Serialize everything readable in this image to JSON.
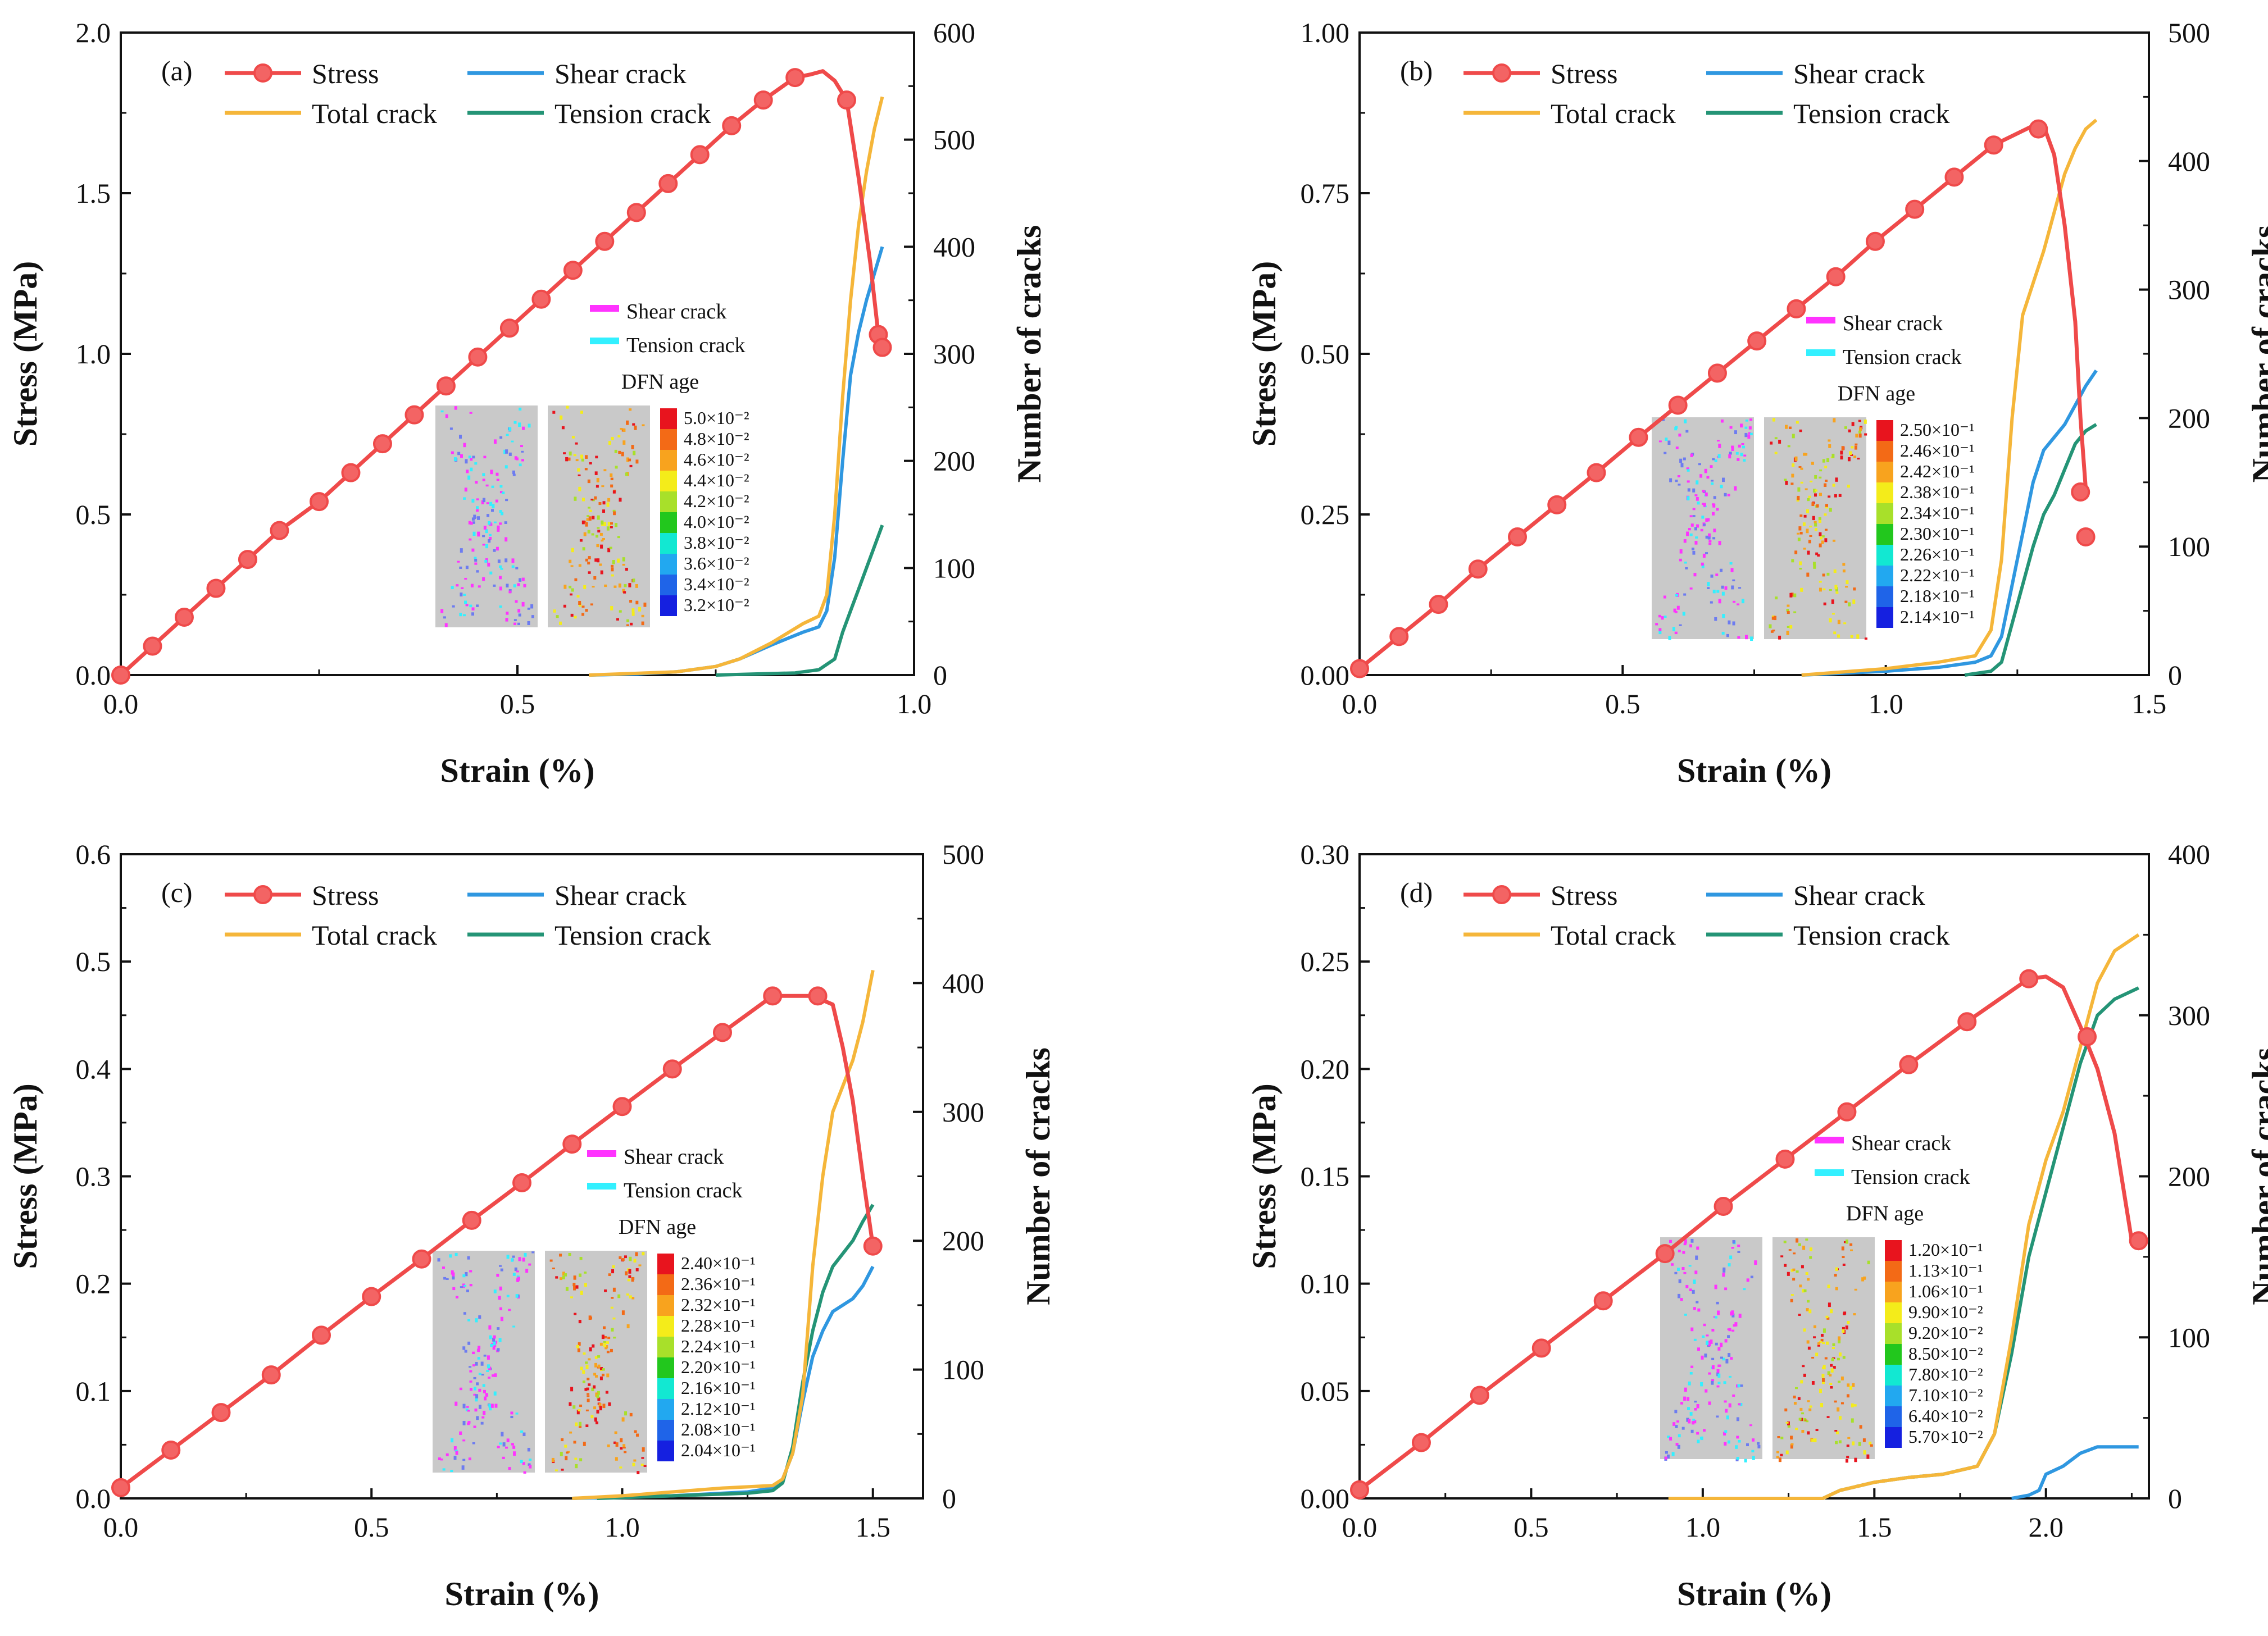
{
  "colors": {
    "stress": "#ef4a4a",
    "stress_marker": "#f36464",
    "shear": "#2f97e0",
    "total": "#f5b63a",
    "tension": "#249476",
    "inset_shear": "#ff33ff",
    "inset_tension": "#33f0ff",
    "specimen": "#c9c9c9"
  },
  "inset": {
    "shear_label": "Shear crack",
    "tension_label": "Tension crack",
    "dfn_title": "DFN age"
  },
  "colorbar_palette": [
    "#e8141e",
    "#f36a16",
    "#f8a31e",
    "#f4ec1a",
    "#a8e02a",
    "#22c71d",
    "#12e8d2",
    "#22a8f0",
    "#1f64e8",
    "#1520e0"
  ],
  "chart_data": [
    {
      "type": "line",
      "panel": "(a)",
      "xlabel": "Strain (%)",
      "ylabel": "Stress (MPa)",
      "y2label": "Number of  cracks",
      "xlim": [
        0,
        1.0
      ],
      "ylim": [
        0,
        2.0
      ],
      "y2lim": [
        0,
        600
      ],
      "xticks": [
        "0.0",
        "0.5",
        "1.0"
      ],
      "yticks": [
        "0.0",
        "0.5",
        "1.0",
        "1.5",
        "2.0"
      ],
      "y2ticks": [
        "0",
        "100",
        "200",
        "300",
        "400",
        "500",
        "600"
      ],
      "legend": [
        "Stress",
        "Shear crack",
        "Total crack",
        "Tension crack"
      ],
      "colorbar_labels": [
        "5.0×10⁻²",
        "4.8×10⁻²",
        "4.6×10⁻²",
        "4.4×10⁻²",
        "4.2×10⁻²",
        "4.0×10⁻²",
        "3.8×10⁻²",
        "3.6×10⁻²",
        "3.4×10⁻²",
        "3.2×10⁻²"
      ],
      "series": [
        {
          "name": "Stress",
          "axis": "left",
          "x": [
            0,
            0.04,
            0.08,
            0.12,
            0.16,
            0.2,
            0.25,
            0.29,
            0.33,
            0.37,
            0.41,
            0.45,
            0.49,
            0.53,
            0.57,
            0.61,
            0.65,
            0.69,
            0.73,
            0.77,
            0.81,
            0.85,
            0.87,
            0.885,
            0.9,
            0.915,
            0.93,
            0.945,
            0.955,
            0.96
          ],
          "y": [
            0.0,
            0.09,
            0.18,
            0.27,
            0.36,
            0.45,
            0.54,
            0.63,
            0.72,
            0.81,
            0.9,
            0.99,
            1.08,
            1.17,
            1.26,
            1.35,
            1.44,
            1.53,
            1.62,
            1.71,
            1.79,
            1.86,
            1.87,
            1.88,
            1.85,
            1.79,
            1.55,
            1.28,
            1.06,
            1.02
          ],
          "markers": [
            0,
            0.09,
            0.18,
            0.27,
            0.36,
            0.45,
            0.54,
            0.63,
            0.72,
            0.81,
            0.9,
            0.99,
            1.08,
            1.17,
            1.26,
            1.35,
            1.44,
            1.53,
            1.62,
            1.71,
            1.79,
            1.86,
            1.79,
            1.06,
            1.02
          ],
          "marker_x": [
            0,
            0.04,
            0.08,
            0.12,
            0.16,
            0.2,
            0.25,
            0.29,
            0.33,
            0.37,
            0.41,
            0.45,
            0.49,
            0.53,
            0.57,
            0.61,
            0.65,
            0.69,
            0.73,
            0.77,
            0.81,
            0.85,
            0.915,
            0.955,
            0.96
          ]
        },
        {
          "name": "Shear crack",
          "axis": "right",
          "x": [
            0.59,
            0.65,
            0.7,
            0.75,
            0.78,
            0.82,
            0.86,
            0.88,
            0.89,
            0.9,
            0.91,
            0.92,
            0.93,
            0.94,
            0.95,
            0.96
          ],
          "y": [
            0,
            1,
            3,
            8,
            15,
            28,
            40,
            45,
            60,
            110,
            200,
            280,
            320,
            350,
            375,
            400
          ]
        },
        {
          "name": "Total crack",
          "axis": "right",
          "x": [
            0.59,
            0.7,
            0.75,
            0.78,
            0.82,
            0.86,
            0.88,
            0.89,
            0.9,
            0.91,
            0.92,
            0.93,
            0.94,
            0.95,
            0.96
          ],
          "y": [
            0,
            3,
            8,
            15,
            30,
            48,
            55,
            75,
            150,
            260,
            350,
            420,
            470,
            510,
            540
          ]
        },
        {
          "name": "Tension crack",
          "axis": "right",
          "x": [
            0.75,
            0.85,
            0.88,
            0.9,
            0.91,
            0.92,
            0.93,
            0.94,
            0.95,
            0.96
          ],
          "y": [
            0,
            2,
            5,
            15,
            40,
            60,
            80,
            100,
            120,
            140
          ]
        }
      ]
    },
    {
      "type": "line",
      "panel": "(b)",
      "xlabel": "Strain (%)",
      "ylabel": "Stress (MPa)",
      "y2label": "Number of cracks",
      "xlim": [
        0,
        1.5
      ],
      "ylim": [
        0,
        1.0
      ],
      "y2lim": [
        0,
        500
      ],
      "xticks": [
        "0.0",
        "0.5",
        "1.0",
        "1.5"
      ],
      "yticks": [
        "0.00",
        "0.25",
        "0.50",
        "0.75",
        "1.00"
      ],
      "y2ticks": [
        "0",
        "100",
        "200",
        "300",
        "400",
        "500"
      ],
      "legend": [
        "Stress",
        "Shear crack",
        "Total crack",
        "Tension crack"
      ],
      "colorbar_labels": [
        "2.50×10⁻¹",
        "2.46×10⁻¹",
        "2.42×10⁻¹",
        "2.38×10⁻¹",
        "2.34×10⁻¹",
        "2.30×10⁻¹",
        "2.26×10⁻¹",
        "2.22×10⁻¹",
        "2.18×10⁻¹",
        "2.14×10⁻¹"
      ],
      "series": [
        {
          "name": "Stress",
          "axis": "left",
          "x": [
            0,
            0.075,
            0.15,
            0.225,
            0.3,
            0.375,
            0.45,
            0.53,
            0.605,
            0.68,
            0.755,
            0.83,
            0.905,
            0.98,
            1.055,
            1.13,
            1.205,
            1.28,
            1.3,
            1.32,
            1.34,
            1.36,
            1.37,
            1.38
          ],
          "y": [
            0.01,
            0.06,
            0.11,
            0.165,
            0.215,
            0.265,
            0.315,
            0.37,
            0.42,
            0.47,
            0.52,
            0.57,
            0.62,
            0.675,
            0.725,
            0.775,
            0.825,
            0.855,
            0.855,
            0.81,
            0.7,
            0.55,
            0.4,
            0.29
          ],
          "marker_x": [
            0,
            0.075,
            0.15,
            0.225,
            0.3,
            0.375,
            0.45,
            0.53,
            0.605,
            0.68,
            0.755,
            0.83,
            0.905,
            0.98,
            1.055,
            1.13,
            1.205,
            1.29,
            1.37,
            1.38
          ],
          "markers": [
            0.01,
            0.06,
            0.11,
            0.165,
            0.215,
            0.265,
            0.315,
            0.37,
            0.42,
            0.47,
            0.52,
            0.57,
            0.62,
            0.675,
            0.725,
            0.775,
            0.825,
            0.85,
            0.285,
            0.215
          ]
        },
        {
          "name": "Shear crack",
          "axis": "right",
          "x": [
            0.84,
            1.0,
            1.1,
            1.17,
            1.2,
            1.22,
            1.24,
            1.26,
            1.28,
            1.3,
            1.32,
            1.34,
            1.36,
            1.38,
            1.4
          ],
          "y": [
            0,
            3,
            6,
            10,
            15,
            30,
            70,
            110,
            150,
            175,
            185,
            195,
            210,
            225,
            237
          ]
        },
        {
          "name": "Total crack",
          "axis": "right",
          "x": [
            0.84,
            1.0,
            1.1,
            1.17,
            1.2,
            1.22,
            1.24,
            1.26,
            1.28,
            1.3,
            1.32,
            1.34,
            1.36,
            1.38,
            1.4
          ],
          "y": [
            0,
            5,
            10,
            15,
            35,
            90,
            200,
            280,
            305,
            330,
            360,
            390,
            410,
            425,
            432
          ]
        },
        {
          "name": "Tension crack",
          "axis": "right",
          "x": [
            1.15,
            1.2,
            1.22,
            1.24,
            1.26,
            1.28,
            1.3,
            1.32,
            1.34,
            1.36,
            1.38,
            1.4
          ],
          "y": [
            0,
            3,
            10,
            40,
            70,
            100,
            125,
            140,
            160,
            180,
            190,
            195
          ]
        }
      ]
    },
    {
      "type": "line",
      "panel": "(c)",
      "xlabel": "Strain (%)",
      "ylabel": "Stress (MPa)",
      "y2label": "Number of cracks",
      "xlim": [
        0,
        1.6
      ],
      "ylim": [
        0,
        0.6
      ],
      "y2lim": [
        0,
        500
      ],
      "xticks": [
        "0.0",
        "0.5",
        "1.0",
        "1.5"
      ],
      "yticks": [
        "0.0",
        "0.1",
        "0.2",
        "0.3",
        "0.4",
        "0.5",
        "0.6"
      ],
      "y2ticks": [
        "0",
        "100",
        "200",
        "300",
        "400",
        "500"
      ],
      "legend": [
        "Stress",
        "Shear crack",
        "Total crack",
        "Tension crack"
      ],
      "colorbar_labels": [
        "2.40×10⁻¹",
        "2.36×10⁻¹",
        "2.32×10⁻¹",
        "2.28×10⁻¹",
        "2.24×10⁻¹",
        "2.20×10⁻¹",
        "2.16×10⁻¹",
        "2.12×10⁻¹",
        "2.08×10⁻¹",
        "2.04×10⁻¹"
      ],
      "series": [
        {
          "name": "Stress",
          "axis": "left",
          "x": [
            0,
            0.1,
            0.2,
            0.3,
            0.4,
            0.5,
            0.6,
            0.7,
            0.8,
            0.9,
            1.0,
            1.1,
            1.2,
            1.3,
            1.38,
            1.42,
            1.44,
            1.46,
            1.48,
            1.5
          ],
          "y": [
            0.01,
            0.045,
            0.08,
            0.115,
            0.152,
            0.188,
            0.223,
            0.259,
            0.294,
            0.33,
            0.365,
            0.4,
            0.434,
            0.468,
            0.468,
            0.46,
            0.42,
            0.37,
            0.3,
            0.235
          ],
          "marker_x": [
            0,
            0.1,
            0.2,
            0.3,
            0.4,
            0.5,
            0.6,
            0.7,
            0.8,
            0.9,
            1.0,
            1.1,
            1.2,
            1.3,
            1.39,
            1.5
          ],
          "markers": [
            0.01,
            0.045,
            0.08,
            0.115,
            0.152,
            0.188,
            0.223,
            0.259,
            0.294,
            0.33,
            0.365,
            0.4,
            0.434,
            0.468,
            0.468,
            0.235
          ]
        },
        {
          "name": "Shear crack",
          "axis": "right",
          "x": [
            0.9,
            1.1,
            1.25,
            1.3,
            1.32,
            1.34,
            1.36,
            1.38,
            1.4,
            1.42,
            1.44,
            1.46,
            1.48,
            1.5
          ],
          "y": [
            0,
            2,
            5,
            8,
            15,
            35,
            75,
            110,
            130,
            145,
            150,
            155,
            165,
            180
          ]
        },
        {
          "name": "Total crack",
          "axis": "right",
          "x": [
            0.9,
            1.0,
            1.1,
            1.2,
            1.3,
            1.32,
            1.34,
            1.36,
            1.38,
            1.4,
            1.42,
            1.44,
            1.46,
            1.48,
            1.5
          ],
          "y": [
            0,
            2,
            5,
            8,
            10,
            15,
            35,
            80,
            180,
            250,
            300,
            320,
            340,
            370,
            410
          ]
        },
        {
          "name": "Tension crack",
          "axis": "right",
          "x": [
            0.95,
            1.1,
            1.25,
            1.3,
            1.32,
            1.34,
            1.36,
            1.38,
            1.4,
            1.42,
            1.44,
            1.46,
            1.48,
            1.5
          ],
          "y": [
            0,
            2,
            4,
            6,
            12,
            40,
            90,
            130,
            160,
            180,
            190,
            200,
            215,
            228
          ]
        }
      ]
    },
    {
      "type": "line",
      "panel": "(d)",
      "xlabel": "Strain (%)",
      "ylabel": "Stress (MPa)",
      "y2label": "Number of cracks",
      "xlim": [
        0,
        2.3
      ],
      "ylim": [
        0,
        0.3
      ],
      "y2lim": [
        0,
        400
      ],
      "xticks": [
        "0.0",
        "0.5",
        "1.0",
        "1.5",
        "2.0"
      ],
      "yticks": [
        "0.00",
        "0.05",
        "0.10",
        "0.15",
        "0.20",
        "0.25",
        "0.30"
      ],
      "y2ticks": [
        "0",
        "100",
        "200",
        "300",
        "400"
      ],
      "legend": [
        "Stress",
        "Shear crack",
        "Total crack",
        "Tension crack"
      ],
      "colorbar_labels": [
        "1.20×10⁻¹",
        "1.13×10⁻¹",
        "1.06×10⁻¹",
        "9.90×10⁻²",
        "9.20×10⁻²",
        "8.50×10⁻²",
        "7.80×10⁻²",
        "7.10×10⁻²",
        "6.40×10⁻²",
        "5.70×10⁻²"
      ],
      "series": [
        {
          "name": "Stress",
          "axis": "left",
          "x": [
            0,
            0.18,
            0.35,
            0.53,
            0.71,
            0.89,
            1.06,
            1.24,
            1.42,
            1.6,
            1.77,
            1.95,
            2.0,
            2.05,
            2.1,
            2.15,
            2.2,
            2.25,
            2.27
          ],
          "y": [
            0.004,
            0.026,
            0.048,
            0.07,
            0.092,
            0.114,
            0.136,
            0.158,
            0.18,
            0.202,
            0.222,
            0.242,
            0.243,
            0.238,
            0.22,
            0.2,
            0.17,
            0.12,
            0.12
          ],
          "marker_x": [
            0,
            0.18,
            0.35,
            0.53,
            0.71,
            0.89,
            1.06,
            1.24,
            1.42,
            1.6,
            1.77,
            1.95,
            2.12,
            2.27
          ],
          "markers": [
            0.004,
            0.026,
            0.048,
            0.07,
            0.092,
            0.114,
            0.136,
            0.158,
            0.18,
            0.202,
            0.222,
            0.242,
            0.215,
            0.12
          ]
        },
        {
          "name": "Shear crack",
          "axis": "right",
          "x": [
            1.9,
            1.95,
            1.98,
            2.0,
            2.05,
            2.1,
            2.15,
            2.2,
            2.27
          ],
          "y": [
            0,
            2,
            5,
            15,
            20,
            28,
            32,
            32,
            32
          ]
        },
        {
          "name": "Total crack",
          "axis": "right",
          "x": [
            0.9,
            1.35,
            1.4,
            1.5,
            1.6,
            1.7,
            1.8,
            1.85,
            1.9,
            1.95,
            2.0,
            2.05,
            2.1,
            2.15,
            2.2,
            2.27
          ],
          "y": [
            0,
            0,
            5,
            10,
            13,
            15,
            20,
            40,
            100,
            170,
            210,
            240,
            280,
            320,
            340,
            350
          ]
        },
        {
          "name": "Tension crack",
          "axis": "right",
          "x": [
            0.9,
            1.35,
            1.4,
            1.5,
            1.6,
            1.7,
            1.8,
            1.85,
            1.9,
            1.95,
            2.0,
            2.05,
            2.1,
            2.15,
            2.2,
            2.27
          ],
          "y": [
            0,
            0,
            5,
            10,
            13,
            15,
            20,
            40,
            90,
            150,
            190,
            230,
            270,
            300,
            310,
            317
          ]
        }
      ]
    }
  ]
}
